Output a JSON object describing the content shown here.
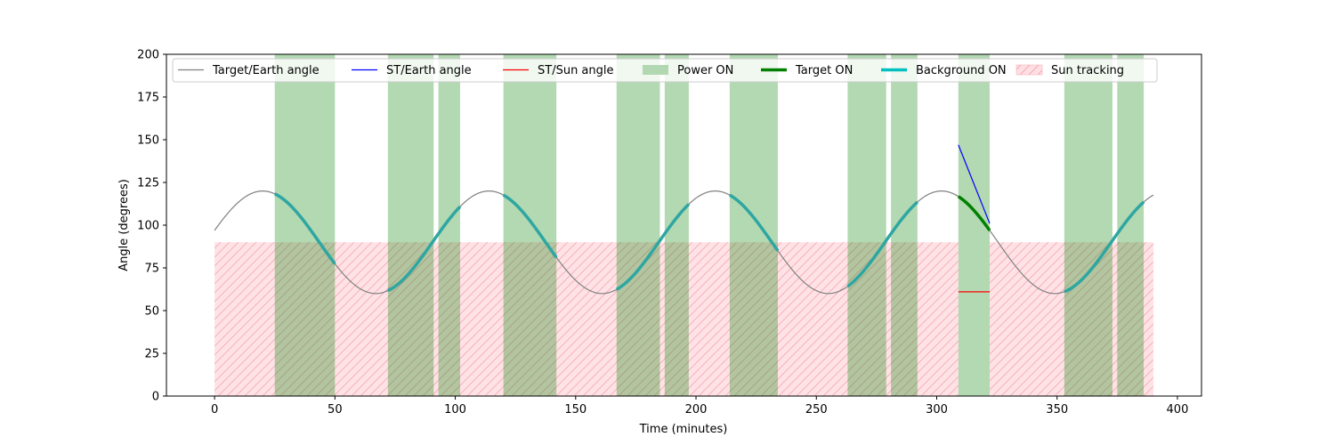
{
  "chart_data": {
    "type": "line",
    "title": "",
    "xlabel": "Time (minutes)",
    "ylabel": "Angle (degrees)",
    "xlim": [
      -20,
      410
    ],
    "ylim": [
      0,
      200
    ],
    "x_ticks": [
      0,
      50,
      100,
      150,
      200,
      250,
      300,
      350,
      400
    ],
    "y_ticks": [
      0,
      25,
      50,
      75,
      100,
      125,
      150,
      175,
      200
    ],
    "grid": false,
    "legend_position": "top",
    "target_earth_angle": {
      "name": "Target/Earth angle",
      "color": "#808080",
      "x_range": [
        0,
        390
      ],
      "mean": 90,
      "amplitude": 30,
      "period_minutes": 94,
      "peak_time": 20
    },
    "power_on_intervals": [
      [
        25,
        50
      ],
      [
        72,
        91
      ],
      [
        93,
        102
      ],
      [
        120,
        142
      ],
      [
        167,
        185
      ],
      [
        187,
        197
      ],
      [
        214,
        234
      ],
      [
        263,
        279
      ],
      [
        281,
        292
      ],
      [
        309,
        322
      ],
      [
        353,
        373
      ],
      [
        375,
        386
      ]
    ],
    "background_on_intervals": [
      [
        25,
        50
      ],
      [
        72,
        102
      ],
      [
        120,
        142
      ],
      [
        167,
        197
      ],
      [
        214,
        234
      ],
      [
        263,
        292
      ],
      [
        353,
        386
      ]
    ],
    "target_on_intervals": [
      [
        309,
        322
      ]
    ],
    "st_earth_angle": {
      "name": "ST/Earth angle",
      "color": "#0000ff",
      "points": [
        [
          309,
          147
        ],
        [
          322,
          101
        ]
      ]
    },
    "st_sun_angle": {
      "name": "ST/Sun angle",
      "color": "#ff0000",
      "points": [
        [
          309,
          61
        ],
        [
          322,
          61
        ]
      ]
    },
    "sun_tracking_intervals": [
      [
        0,
        309
      ],
      [
        322,
        390
      ]
    ],
    "sun_tracking_level": 90,
    "legend": [
      {
        "label": "Target/Earth angle",
        "kind": "line",
        "color": "#808080"
      },
      {
        "label": "ST/Earth angle",
        "kind": "line",
        "color": "#0000ff"
      },
      {
        "label": "ST/Sun angle",
        "kind": "line",
        "color": "#ff0000"
      },
      {
        "label": "Power ON",
        "kind": "patch",
        "color": "#b2d8b2"
      },
      {
        "label": "Target ON",
        "kind": "thick-line",
        "color": "#008000"
      },
      {
        "label": "Background ON",
        "kind": "thick-line",
        "color": "#00bfbf"
      },
      {
        "label": "Sun tracking",
        "kind": "hatch",
        "color": "#ffdfe3"
      }
    ]
  }
}
